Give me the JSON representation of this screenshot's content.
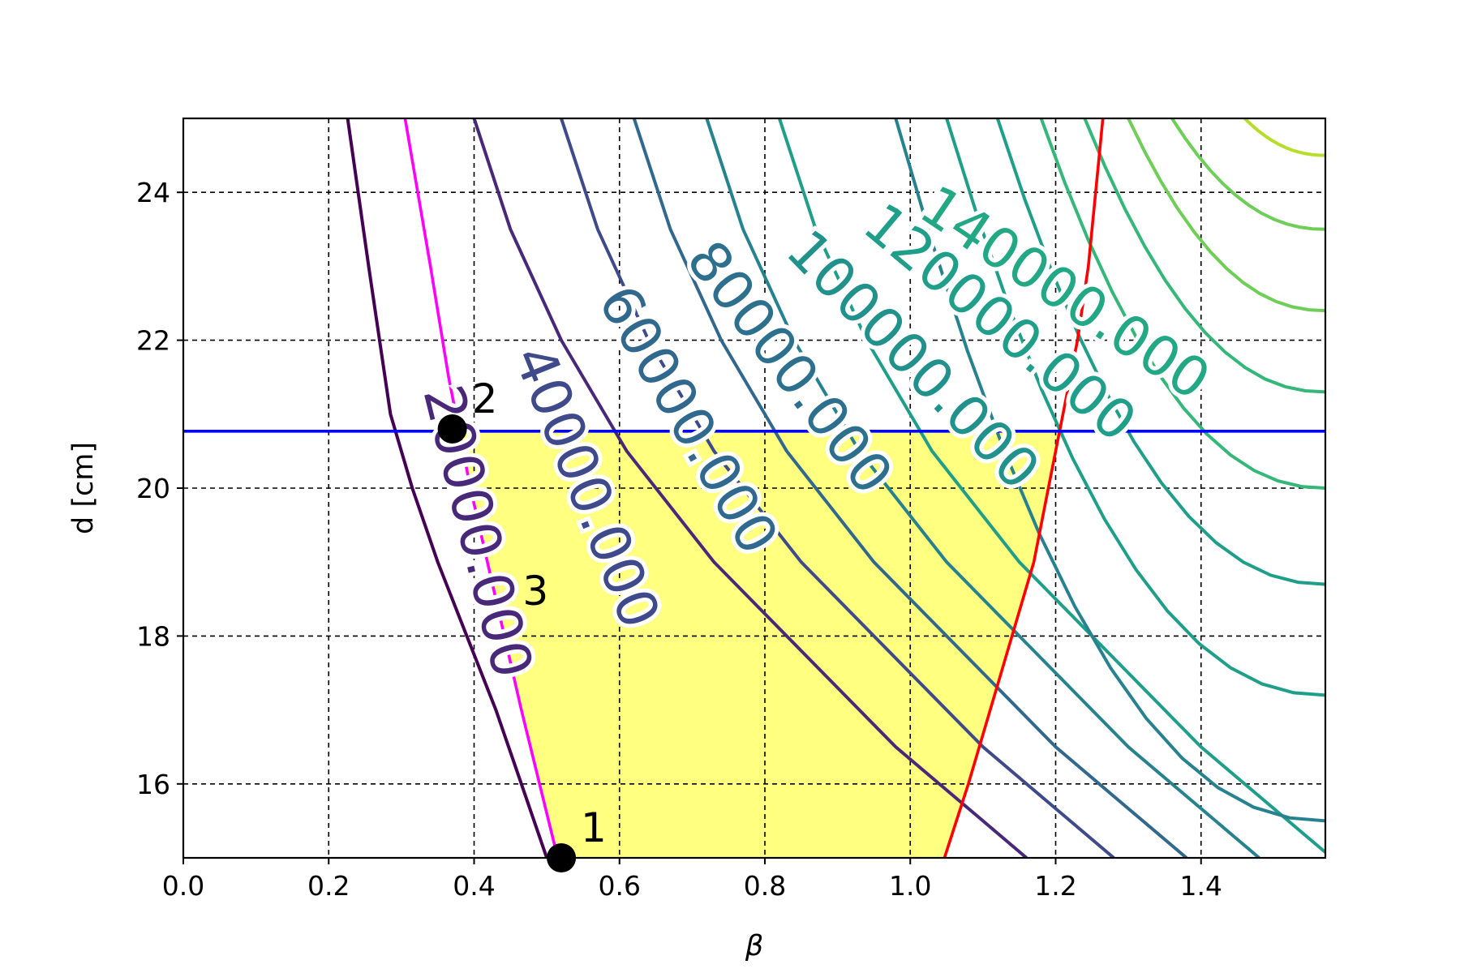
{
  "chart_data": {
    "type": "contour",
    "title": "",
    "xlabel": "β",
    "ylabel": "d [cm]",
    "xlim": [
      0.0,
      1.571
    ],
    "ylim": [
      15.0,
      25.0
    ],
    "xticks": [
      "0.0",
      "0.2",
      "0.4",
      "0.6",
      "0.8",
      "1.0",
      "1.2",
      "1.4"
    ],
    "yticks": [
      "16",
      "18",
      "20",
      "22",
      "24"
    ],
    "grid": true,
    "grid_style": "dashed",
    "contour_labels": [
      {
        "text": "20000.000",
        "x": 0.4,
        "y": 19.4,
        "rot": 76,
        "color": "#482878"
      },
      {
        "text": "40000.000",
        "x": 0.55,
        "y": 20.0,
        "rot": 68,
        "color": "#3e4a89"
      },
      {
        "text": "60000.000",
        "x": 0.69,
        "y": 20.9,
        "rot": 60,
        "color": "#31688e"
      },
      {
        "text": "80000.000",
        "x": 0.83,
        "y": 21.6,
        "rot": 53,
        "color": "#2d708e"
      },
      {
        "text": "100000.000",
        "x": 1.0,
        "y": 21.7,
        "rot": 46,
        "color": "#21918c"
      },
      {
        "text": "120000.000",
        "x": 1.12,
        "y": 22.2,
        "rot": 40,
        "color": "#1f9e89"
      },
      {
        "text": "140000.000",
        "x": 1.21,
        "y": 22.6,
        "rot": 34,
        "color": "#22a884"
      }
    ],
    "contour_colors": [
      "#440154",
      "#482878",
      "#3e4a89",
      "#31688e",
      "#26828e",
      "#1f9e89",
      "#35b779",
      "#6ece58",
      "#b5de2b",
      "#fde725"
    ],
    "constraint_curves": [
      {
        "color": "#ff00ff",
        "points": [
          [
            0.305,
            25.0
          ],
          [
            0.34,
            23.0
          ],
          [
            0.365,
            21.5
          ],
          [
            0.395,
            20.0
          ],
          [
            0.43,
            18.5
          ],
          [
            0.465,
            17.0
          ],
          [
            0.49,
            16.0
          ],
          [
            0.515,
            15.0
          ]
        ]
      },
      {
        "color": "#ff0000",
        "points": [
          [
            1.047,
            15.0
          ],
          [
            1.08,
            16.0
          ],
          [
            1.11,
            17.0
          ],
          [
            1.14,
            18.0
          ],
          [
            1.17,
            19.0
          ],
          [
            1.19,
            20.0
          ],
          [
            1.21,
            21.0
          ],
          [
            1.23,
            22.0
          ],
          [
            1.245,
            23.0
          ],
          [
            1.255,
            24.0
          ],
          [
            1.265,
            25.0
          ]
        ]
      },
      {
        "color": "#0000ff",
        "points": [
          [
            0.0,
            20.77
          ],
          [
            1.571,
            20.77
          ]
        ]
      }
    ],
    "feasible_region": {
      "color": "#ffff80",
      "d_max": 20.77
    },
    "points": [
      {
        "label": "1",
        "x": 0.52,
        "y": 15.0,
        "marker": true
      },
      {
        "label": "2",
        "x": 0.37,
        "y": 20.8,
        "marker": true
      },
      {
        "label": "3",
        "x": 0.44,
        "y": 18.2,
        "marker": false
      }
    ]
  }
}
